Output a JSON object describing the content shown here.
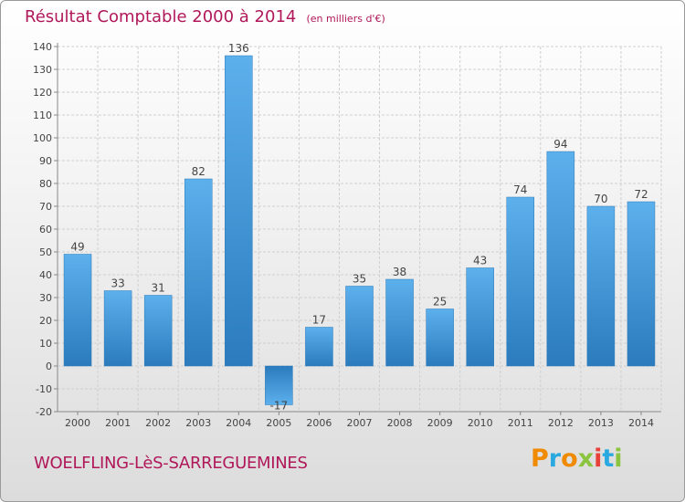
{
  "title": "Résultat Comptable 2000 à 2014",
  "unit": "(en milliers d'€)",
  "location": "WOELFLING-LèS-SARREGUEMINES",
  "brand": [
    "P",
    "r",
    "o",
    "x",
    "i",
    "t",
    "i"
  ],
  "colors": {
    "bar": "#3a8fd4",
    "title": "#b0185a",
    "axis": "#555555"
  },
  "chart_data": {
    "type": "bar",
    "title": "Résultat Comptable 2000 à 2014",
    "subtitle": "(en milliers d'€)",
    "categories": [
      "2000",
      "2001",
      "2002",
      "2003",
      "2004",
      "2005",
      "2006",
      "2007",
      "2008",
      "2009",
      "2010",
      "2011",
      "2012",
      "2013",
      "2014"
    ],
    "values": [
      49,
      33,
      31,
      82,
      136,
      -17,
      17,
      35,
      38,
      25,
      43,
      74,
      94,
      70,
      72
    ],
    "ylim": [
      -20,
      140
    ],
    "yticks": [
      -20,
      -10,
      0,
      10,
      20,
      30,
      40,
      50,
      60,
      70,
      80,
      90,
      100,
      110,
      120,
      130,
      140
    ],
    "grid": true
  }
}
